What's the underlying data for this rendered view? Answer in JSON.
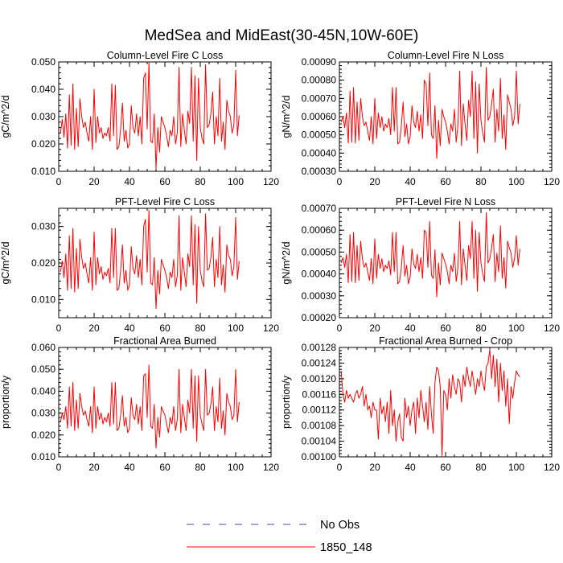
{
  "figure": {
    "title": "MedSea and MidEast(30-45N,10W-60E)"
  },
  "legend": {
    "position": "bottom-center",
    "entries": [
      {
        "label": "No Obs",
        "color": "#4a4aa8",
        "dashed": true
      },
      {
        "label": "1850_148",
        "color": "#ff0000",
        "dashed": false
      }
    ]
  },
  "chart_data": [
    {
      "type": "line",
      "title": "Column-Level Fire C Loss",
      "ylabel": "gC/m^2/d",
      "xlim": [
        0,
        120
      ],
      "ylim": [
        0.01,
        0.05
      ],
      "xticks": [
        0,
        20,
        40,
        60,
        80,
        100,
        120
      ],
      "yticks": [
        0.01,
        0.02,
        0.03,
        0.04,
        0.05
      ],
      "ytick_labels": [
        "0.010",
        "0.020",
        "0.030",
        "0.040",
        "0.050"
      ],
      "series": [
        {
          "name": "1850_148",
          "color": "#ff0000",
          "x_start": 1,
          "values": [
            0.024,
            0.029,
            0.0225,
            0.031,
            0.0185,
            0.038,
            0.0195,
            0.042,
            0.018,
            0.033,
            0.019,
            0.0365,
            0.03,
            0.026,
            0.028,
            0.024,
            0.021,
            0.03,
            0.018,
            0.04,
            0.0205,
            0.03,
            0.024,
            0.026,
            0.022,
            0.024,
            0.023,
            0.026,
            0.021,
            0.042,
            0.023,
            0.0415,
            0.018,
            0.019,
            0.0255,
            0.035,
            0.021,
            0.025,
            0.0185,
            0.02,
            0.034,
            0.026,
            0.024,
            0.031,
            0.023,
            0.03,
            0.02,
            0.044,
            0.046,
            0.0255,
            0.05,
            0.021,
            0.0205,
            0.031,
            0.011,
            0.026,
            0.017,
            0.03,
            0.028,
            0.026,
            0.023,
            0.019,
            0.025,
            0.023,
            0.03,
            0.02,
            0.024,
            0.048,
            0.019,
            0.031,
            0.025,
            0.02,
            0.032,
            0.0275,
            0.048,
            0.021,
            0.045,
            0.014,
            0.044,
            0.026,
            0.022,
            0.02,
            0.049,
            0.026,
            0.027,
            0.031,
            0.039,
            0.02,
            0.03,
            0.023,
            0.044,
            0.021,
            0.028,
            0.018,
            0.036,
            0.032,
            0.03,
            0.024,
            0.027,
            0.047,
            0.023,
            0.0305
          ]
        }
      ]
    },
    {
      "type": "line",
      "title": "Column-Level Fire N Loss",
      "ylabel": "gN/m^2/d",
      "xlim": [
        0,
        120
      ],
      "ylim": [
        0.0003,
        0.0009
      ],
      "xticks": [
        0,
        20,
        40,
        60,
        80,
        100,
        120
      ],
      "yticks": [
        0.0003,
        0.0004,
        0.0005,
        0.0006,
        0.0007,
        0.0008,
        0.0009
      ],
      "ytick_labels": [
        "0.00030",
        "0.00040",
        "0.00050",
        "0.00060",
        "0.00070",
        "0.00080",
        "0.00090"
      ],
      "series": [
        {
          "name": "1850_148",
          "color": "#ff0000",
          "x_start": 1,
          "values": [
            0.00057,
            0.0006,
            0.00054,
            0.00062,
            0.000455,
            0.00074,
            0.00046,
            0.00076,
            0.000455,
            0.00068,
            0.00047,
            0.0007,
            0.0006,
            0.00055,
            0.00057,
            0.00052,
            0.00047,
            0.0006,
            0.00045,
            0.0007,
            0.00048,
            0.00062,
            0.00054,
            0.0006,
            0.00052,
            0.00056,
            0.00054,
            0.00059,
            0.0005,
            0.00076,
            0.00052,
            0.00076,
            0.00045,
            0.00046,
            0.00055,
            0.00068,
            0.00049,
            0.00056,
            0.00045,
            0.00049,
            0.00066,
            0.00057,
            0.00054,
            0.00063,
            0.00052,
            0.00061,
            0.00048,
            0.0008,
            0.00078,
            0.00055,
            0.00084,
            0.0005,
            0.00048,
            0.00066,
            0.00037,
            0.00058,
            0.00044,
            0.00064,
            0.0006,
            0.00057,
            0.00052,
            0.00045,
            0.00056,
            0.00052,
            0.00064,
            0.00046,
            0.00055,
            0.00085,
            0.00044,
            0.00067,
            0.00056,
            0.00047,
            0.00069,
            0.0006,
            0.00085,
            0.00048,
            0.00079,
            0.0004,
            0.00078,
            0.00058,
            0.00051,
            0.00046,
            0.00087,
            0.00058,
            0.0006,
            0.00067,
            0.00075,
            0.00046,
            0.00064,
            0.00052,
            0.00081,
            0.00048,
            0.00061,
            0.00042,
            0.00072,
            0.00068,
            0.00064,
            0.00055,
            0.0006,
            0.00085,
            0.00056,
            0.00067
          ]
        }
      ]
    },
    {
      "type": "line",
      "title": "PFT-Level Fire C Loss",
      "ylabel": "gC/m^2/d",
      "xlim": [
        0,
        120
      ],
      "ylim": [
        0.005,
        0.035
      ],
      "xticks": [
        0,
        20,
        40,
        60,
        80,
        100,
        120
      ],
      "yticks": [
        0.01,
        0.02,
        0.03
      ],
      "ytick_labels": [
        "0.010",
        "0.020",
        "0.030"
      ],
      "series": [
        {
          "name": "1850_148",
          "color": "#ff0000",
          "x_start": 1,
          "values": [
            0.0175,
            0.0205,
            0.016,
            0.0225,
            0.0125,
            0.0275,
            0.013,
            0.0295,
            0.012,
            0.024,
            0.013,
            0.0265,
            0.0215,
            0.0185,
            0.02,
            0.017,
            0.0145,
            0.0215,
            0.0125,
            0.0285,
            0.014,
            0.0215,
            0.017,
            0.019,
            0.0155,
            0.0175,
            0.0165,
            0.0185,
            0.0145,
            0.0295,
            0.016,
            0.0295,
            0.0125,
            0.013,
            0.018,
            0.025,
            0.0145,
            0.018,
            0.0125,
            0.014,
            0.0245,
            0.0185,
            0.017,
            0.022,
            0.016,
            0.021,
            0.014,
            0.03,
            0.032,
            0.0175,
            0.0345,
            0.0145,
            0.014,
            0.0215,
            0.0075,
            0.018,
            0.0115,
            0.021,
            0.0195,
            0.018,
            0.016,
            0.013,
            0.0175,
            0.016,
            0.021,
            0.0135,
            0.0165,
            0.033,
            0.0125,
            0.0215,
            0.0175,
            0.0135,
            0.0225,
            0.019,
            0.033,
            0.014,
            0.0305,
            0.009,
            0.03,
            0.018,
            0.015,
            0.0135,
            0.0335,
            0.018,
            0.0185,
            0.0215,
            0.027,
            0.0135,
            0.021,
            0.016,
            0.03,
            0.014,
            0.0195,
            0.012,
            0.025,
            0.022,
            0.021,
            0.0165,
            0.019,
            0.0325,
            0.0155,
            0.0205
          ]
        }
      ]
    },
    {
      "type": "line",
      "title": "PFT-Level Fire N Loss",
      "ylabel": "gN/m^2/d",
      "xlim": [
        0,
        120
      ],
      "ylim": [
        0.0002,
        0.0007
      ],
      "xticks": [
        0,
        20,
        40,
        60,
        80,
        100,
        120
      ],
      "yticks": [
        0.0002,
        0.0003,
        0.0004,
        0.0005,
        0.0006,
        0.0007
      ],
      "ytick_labels": [
        "0.00020",
        "0.00030",
        "0.00040",
        "0.00050",
        "0.00060",
        "0.00070"
      ],
      "series": [
        {
          "name": "1850_148",
          "color": "#ff0000",
          "x_start": 1,
          "values": [
            0.00045,
            0.000475,
            0.00043,
            0.00049,
            0.00036,
            0.00058,
            0.000365,
            0.00059,
            0.00036,
            0.00053,
            0.00037,
            0.00055,
            0.00047,
            0.00043,
            0.00045,
            0.00041,
            0.00037,
            0.00047,
            0.000355,
            0.00056,
            0.00038,
            0.00049,
            0.000425,
            0.00047,
            0.00041,
            0.00044,
            0.000425,
            0.00046,
            0.000395,
            0.00059,
            0.00041,
            0.00059,
            0.000355,
            0.000365,
            0.00043,
            0.00053,
            0.00039,
            0.00044,
            0.000355,
            0.000385,
            0.000515,
            0.000445,
            0.000425,
            0.00049,
            0.00041,
            0.000475,
            0.00038,
            0.0006,
            0.00059,
            0.00043,
            0.00064,
            0.000395,
            0.00038,
            0.00051,
            0.000295,
            0.00045,
            0.00035,
            0.000495,
            0.00047,
            0.000445,
            0.00041,
            0.000355,
            0.00044,
            0.00041,
            0.000495,
            0.000365,
            0.00043,
            0.00064,
            0.00035,
            0.000515,
            0.00044,
            0.00037,
            0.00053,
            0.00047,
            0.00064,
            0.00038,
            0.0006,
            0.00032,
            0.00059,
            0.00045,
            0.0004,
            0.000365,
            0.00068,
            0.00045,
            0.00047,
            0.00052,
            0.00058,
            0.000365,
            0.000495,
            0.00041,
            0.00062,
            0.00038,
            0.000475,
            0.000335,
            0.00055,
            0.00052,
            0.000495,
            0.00043,
            0.00047,
            0.000575,
            0.00044,
            0.000515
          ]
        }
      ]
    },
    {
      "type": "line",
      "title": "Fractional Area Burned",
      "ylabel": "proportion/y",
      "xlim": [
        0,
        120
      ],
      "ylim": [
        0.01,
        0.06
      ],
      "xticks": [
        0,
        20,
        40,
        60,
        80,
        100,
        120
      ],
      "yticks": [
        0.01,
        0.02,
        0.03,
        0.04,
        0.05,
        0.06
      ],
      "ytick_labels": [
        "0.010",
        "0.020",
        "0.030",
        "0.040",
        "0.050",
        "0.060"
      ],
      "series": [
        {
          "name": "1850_148",
          "color": "#ff0000",
          "x_start": 1,
          "values": [
            0.026,
            0.03,
            0.027,
            0.033,
            0.023,
            0.042,
            0.024,
            0.044,
            0.022,
            0.036,
            0.023,
            0.039,
            0.033,
            0.029,
            0.031,
            0.027,
            0.024,
            0.033,
            0.021,
            0.042,
            0.023,
            0.033,
            0.027,
            0.03,
            0.025,
            0.028,
            0.026,
            0.03,
            0.024,
            0.044,
            0.025,
            0.044,
            0.022,
            0.023,
            0.029,
            0.038,
            0.024,
            0.028,
            0.021,
            0.023,
            0.037,
            0.029,
            0.027,
            0.034,
            0.025,
            0.033,
            0.022,
            0.047,
            0.048,
            0.028,
            0.052,
            0.024,
            0.023,
            0.034,
            0.014,
            0.028,
            0.019,
            0.033,
            0.031,
            0.029,
            0.025,
            0.021,
            0.028,
            0.025,
            0.033,
            0.022,
            0.027,
            0.05,
            0.021,
            0.034,
            0.028,
            0.022,
            0.036,
            0.03,
            0.05,
            0.023,
            0.047,
            0.017,
            0.047,
            0.029,
            0.025,
            0.022,
            0.05,
            0.029,
            0.03,
            0.034,
            0.042,
            0.022,
            0.033,
            0.026,
            0.046,
            0.023,
            0.031,
            0.02,
            0.039,
            0.035,
            0.033,
            0.027,
            0.029,
            0.05,
            0.026,
            0.035
          ]
        }
      ]
    },
    {
      "type": "line",
      "title": "Fractional Area Burned - Crop",
      "ylabel": "proportion/y",
      "xlim": [
        0,
        120
      ],
      "ylim": [
        0.001,
        0.00128
      ],
      "xticks": [
        0,
        20,
        40,
        60,
        80,
        100,
        120
      ],
      "yticks": [
        0.001,
        0.00104,
        0.00108,
        0.00112,
        0.00116,
        0.0012,
        0.00124,
        0.00128
      ],
      "ytick_labels": [
        "0.00100",
        "0.00104",
        "0.00108",
        "0.00112",
        "0.00116",
        "0.00120",
        "0.00124",
        "0.00128"
      ],
      "series": [
        {
          "name": "1850_148",
          "color": "#ff0000",
          "x_start": 1,
          "values": [
            0.00122,
            0.00116,
            0.00114,
            0.00117,
            0.00115,
            0.00116,
            0.00115,
            0.00114,
            0.00116,
            0.00117,
            0.00115,
            0.00116,
            0.00118,
            0.00113,
            0.00116,
            0.00112,
            0.00113,
            0.0011,
            0.00114,
            0.00112,
            0.00112,
            0.001045,
            0.00115,
            0.00111,
            0.00113,
            0.00109,
            0.00114,
            0.00106,
            0.00117,
            0.00108,
            0.00112,
            0.00104,
            0.00109,
            0.00111,
            0.00105,
            0.00104,
            0.00115,
            0.0011,
            0.00113,
            0.00108,
            0.00112,
            0.00114,
            0.00106,
            0.00115,
            0.0011,
            0.00117,
            0.00113,
            0.00109,
            0.00114,
            0.00107,
            0.00118,
            0.00111,
            0.00106,
            0.00119,
            0.00123,
            0.00122,
            0.00118,
            0.001002,
            0.00117,
            0.00116,
            0.00112,
            0.0012,
            0.00115,
            0.00121,
            0.00118,
            0.00116,
            0.0012,
            0.00119,
            0.00114,
            0.00121,
            0.00118,
            0.00123,
            0.0012,
            0.00118,
            0.00122,
            0.00119,
            0.00116,
            0.0012,
            0.00118,
            0.00122,
            0.00119,
            0.00117,
            0.00123,
            0.00124,
            0.001275,
            0.0012,
            0.00126,
            0.00118,
            0.00125,
            0.00114,
            0.00124,
            0.00117,
            0.00122,
            0.00113,
            0.0012,
            0.001085,
            0.00118,
            0.00115,
            0.00119,
            0.00122,
            0.00121,
            0.001205
          ]
        }
      ]
    }
  ]
}
